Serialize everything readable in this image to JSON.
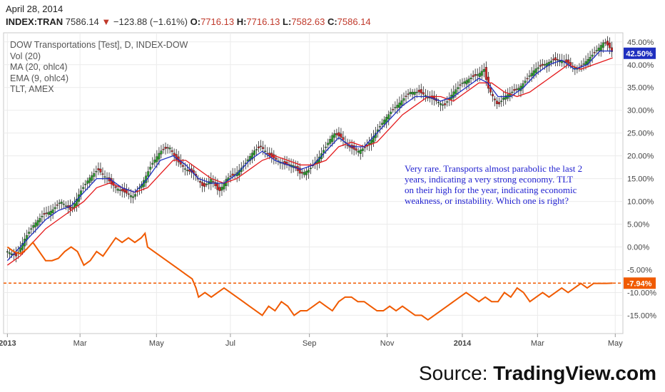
{
  "header": {
    "date": "April 28, 2014",
    "symbol": "INDEX:TRAN",
    "last": "7586.14",
    "change": "−123.88 (−1.61%)",
    "open_label": "O:",
    "open": "7716.13",
    "high_label": "H:",
    "high": "7716.13",
    "low_label": "L:",
    "low": "7582.63",
    "close_label": "C:",
    "close": "7586.14"
  },
  "legend": {
    "title": "DOW Transportations [Test], D, INDEX-DOW",
    "items": [
      "Vol (20)",
      "MA (20, ohlc4)",
      "EMA (9, ohlc4)",
      "TLT, AMEX"
    ]
  },
  "annotation": "Very rare. Transports almost parabolic the last 2 years, indicating a very strong economy. TLT on their high for the year, indicating economic weakness, or instability. Which one is right?",
  "source": {
    "prefix": "Source: ",
    "brand": "TradingView.com"
  },
  "colors": {
    "up": "#2ca02c",
    "down": "#d62728",
    "ma": "#e41a1c",
    "ema": "#1f2fbf",
    "tlt": "#f05a00",
    "price_tag": "#1f2fbf",
    "tlt_tag": "#f05a00"
  },
  "chart_data": {
    "type": "line",
    "title": "DOW Transportations [Test], D, INDEX-DOW",
    "y_unit": "%",
    "ylim": [
      -19,
      47
    ],
    "y_ticks": [
      "45.00%",
      "40.00%",
      "35.00%",
      "30.00%",
      "25.00%",
      "20.00%",
      "15.00%",
      "10.00%",
      "5.00%",
      "0.00%",
      "-5.00%",
      "-10.00%",
      "-15.00%"
    ],
    "y_tick_values": [
      45,
      40,
      35,
      30,
      25,
      20,
      15,
      10,
      5,
      0,
      -5,
      -10,
      -15
    ],
    "x_ticks": [
      "2013",
      "Mar",
      "May",
      "Jul",
      "Sep",
      "Nov",
      "2014",
      "Mar",
      "May"
    ],
    "x_tick_bold": [
      true,
      false,
      false,
      false,
      false,
      false,
      true,
      false,
      false
    ],
    "x_tick_pos": [
      0,
      57,
      117,
      175,
      237,
      298,
      357,
      416,
      477
    ],
    "x_range": [
      -3,
      483
    ],
    "price_label": "42.50%",
    "price_value": 42.5,
    "tlt_label": "-7.94%",
    "tlt_value": -7.94,
    "dow_transports_pct": [
      [
        0,
        -1
      ],
      [
        7,
        -2
      ],
      [
        14,
        2
      ],
      [
        21,
        5
      ],
      [
        28,
        7
      ],
      [
        35,
        8
      ],
      [
        42,
        10
      ],
      [
        50,
        8
      ],
      [
        57,
        12
      ],
      [
        64,
        15
      ],
      [
        71,
        17
      ],
      [
        78,
        15
      ],
      [
        85,
        13
      ],
      [
        92,
        12
      ],
      [
        99,
        11
      ],
      [
        106,
        14
      ],
      [
        113,
        18
      ],
      [
        120,
        21
      ],
      [
        127,
        22
      ],
      [
        133,
        19
      ],
      [
        140,
        17
      ],
      [
        147,
        16
      ],
      [
        154,
        13
      ],
      [
        160,
        15
      ],
      [
        166,
        12
      ],
      [
        172,
        15
      ],
      [
        179,
        16
      ],
      [
        186,
        18
      ],
      [
        193,
        21
      ],
      [
        199,
        22
      ],
      [
        206,
        20
      ],
      [
        212,
        19
      ],
      [
        218,
        18
      ],
      [
        224,
        18
      ],
      [
        230,
        16
      ],
      [
        237,
        17
      ],
      [
        243,
        19
      ],
      [
        250,
        22
      ],
      [
        256,
        25
      ],
      [
        262,
        24
      ],
      [
        268,
        22
      ],
      [
        275,
        21
      ],
      [
        282,
        22
      ],
      [
        289,
        25
      ],
      [
        296,
        28
      ],
      [
        302,
        30
      ],
      [
        309,
        32
      ],
      [
        316,
        34
      ],
      [
        323,
        34
      ],
      [
        330,
        33
      ],
      [
        337,
        32
      ],
      [
        343,
        31
      ],
      [
        350,
        34
      ],
      [
        357,
        36
      ],
      [
        363,
        37
      ],
      [
        370,
        38
      ],
      [
        374,
        39
      ],
      [
        377,
        35
      ],
      [
        381,
        33
      ],
      [
        385,
        31
      ],
      [
        390,
        33
      ],
      [
        396,
        34
      ],
      [
        402,
        35
      ],
      [
        408,
        37
      ],
      [
        414,
        39
      ],
      [
        421,
        40
      ],
      [
        428,
        41
      ],
      [
        435,
        41
      ],
      [
        442,
        40
      ],
      [
        448,
        39
      ],
      [
        455,
        41
      ],
      [
        462,
        43
      ],
      [
        468,
        45
      ],
      [
        472,
        44
      ],
      [
        475,
        42.5
      ]
    ],
    "ema_9": [
      [
        0,
        -3
      ],
      [
        10,
        0
      ],
      [
        20,
        3
      ],
      [
        30,
        6
      ],
      [
        40,
        8
      ],
      [
        50,
        9
      ],
      [
        60,
        12
      ],
      [
        70,
        15
      ],
      [
        80,
        15
      ],
      [
        90,
        13
      ],
      [
        100,
        12
      ],
      [
        110,
        15
      ],
      [
        120,
        19
      ],
      [
        130,
        20
      ],
      [
        140,
        18
      ],
      [
        150,
        15
      ],
      [
        160,
        14
      ],
      [
        170,
        14
      ],
      [
        180,
        16
      ],
      [
        190,
        19
      ],
      [
        200,
        21
      ],
      [
        210,
        19
      ],
      [
        220,
        18
      ],
      [
        230,
        17
      ],
      [
        240,
        18
      ],
      [
        250,
        21
      ],
      [
        260,
        24
      ],
      [
        270,
        22
      ],
      [
        280,
        22
      ],
      [
        290,
        25
      ],
      [
        300,
        28
      ],
      [
        310,
        31
      ],
      [
        320,
        33
      ],
      [
        330,
        33
      ],
      [
        340,
        32
      ],
      [
        350,
        33
      ],
      [
        360,
        35
      ],
      [
        370,
        37
      ],
      [
        377,
        36
      ],
      [
        385,
        33
      ],
      [
        395,
        33
      ],
      [
        405,
        35
      ],
      [
        415,
        38
      ],
      [
        425,
        40
      ],
      [
        435,
        41
      ],
      [
        445,
        39
      ],
      [
        455,
        40
      ],
      [
        465,
        43
      ],
      [
        475,
        43
      ]
    ],
    "ma_20": [
      [
        0,
        -4
      ],
      [
        10,
        -2
      ],
      [
        20,
        1
      ],
      [
        30,
        4
      ],
      [
        40,
        6
      ],
      [
        50,
        8
      ],
      [
        60,
        10
      ],
      [
        70,
        13
      ],
      [
        80,
        14
      ],
      [
        90,
        13
      ],
      [
        100,
        12
      ],
      [
        110,
        13
      ],
      [
        120,
        16
      ],
      [
        130,
        19
      ],
      [
        140,
        19
      ],
      [
        150,
        17
      ],
      [
        160,
        15
      ],
      [
        170,
        14
      ],
      [
        180,
        15
      ],
      [
        190,
        17
      ],
      [
        200,
        19
      ],
      [
        210,
        20
      ],
      [
        220,
        19
      ],
      [
        230,
        18
      ],
      [
        240,
        18
      ],
      [
        250,
        19
      ],
      [
        260,
        22
      ],
      [
        270,
        23
      ],
      [
        280,
        22
      ],
      [
        290,
        23
      ],
      [
        300,
        26
      ],
      [
        310,
        29
      ],
      [
        320,
        31
      ],
      [
        330,
        33
      ],
      [
        340,
        33
      ],
      [
        350,
        32
      ],
      [
        360,
        34
      ],
      [
        370,
        36
      ],
      [
        380,
        36
      ],
      [
        390,
        34
      ],
      [
        400,
        33
      ],
      [
        410,
        34
      ],
      [
        420,
        36
      ],
      [
        430,
        38
      ],
      [
        440,
        40
      ],
      [
        450,
        39
      ],
      [
        460,
        40
      ],
      [
        470,
        41
      ],
      [
        475,
        41.5
      ]
    ],
    "tlt_pct": [
      [
        0,
        0
      ],
      [
        5,
        -1
      ],
      [
        10,
        -1.5
      ],
      [
        15,
        -0.5
      ],
      [
        20,
        1
      ],
      [
        25,
        -1
      ],
      [
        30,
        -3
      ],
      [
        35,
        -3
      ],
      [
        40,
        -2.5
      ],
      [
        45,
        -1
      ],
      [
        50,
        0
      ],
      [
        55,
        -1
      ],
      [
        60,
        -4
      ],
      [
        65,
        -3
      ],
      [
        70,
        -1
      ],
      [
        75,
        -2
      ],
      [
        80,
        0
      ],
      [
        85,
        2
      ],
      [
        90,
        1
      ],
      [
        95,
        2
      ],
      [
        100,
        1
      ],
      [
        105,
        2
      ],
      [
        108,
        3
      ],
      [
        110,
        0
      ],
      [
        115,
        -1
      ],
      [
        120,
        -2
      ],
      [
        125,
        -3
      ],
      [
        130,
        -4
      ],
      [
        135,
        -5
      ],
      [
        140,
        -6
      ],
      [
        145,
        -7
      ],
      [
        148,
        -9
      ],
      [
        150,
        -11
      ],
      [
        155,
        -10
      ],
      [
        160,
        -11
      ],
      [
        165,
        -10
      ],
      [
        170,
        -9
      ],
      [
        175,
        -10
      ],
      [
        180,
        -11
      ],
      [
        185,
        -12
      ],
      [
        190,
        -13
      ],
      [
        195,
        -14
      ],
      [
        200,
        -15
      ],
      [
        205,
        -13
      ],
      [
        210,
        -14
      ],
      [
        215,
        -12
      ],
      [
        220,
        -13
      ],
      [
        225,
        -15
      ],
      [
        230,
        -14
      ],
      [
        235,
        -14
      ],
      [
        240,
        -13
      ],
      [
        245,
        -12
      ],
      [
        250,
        -13
      ],
      [
        255,
        -14
      ],
      [
        260,
        -12
      ],
      [
        265,
        -11
      ],
      [
        270,
        -11
      ],
      [
        275,
        -12
      ],
      [
        280,
        -12
      ],
      [
        285,
        -13
      ],
      [
        290,
        -14
      ],
      [
        295,
        -14
      ],
      [
        300,
        -13
      ],
      [
        305,
        -14
      ],
      [
        310,
        -13
      ],
      [
        315,
        -14
      ],
      [
        320,
        -15
      ],
      [
        325,
        -15
      ],
      [
        330,
        -16
      ],
      [
        335,
        -15
      ],
      [
        340,
        -14
      ],
      [
        345,
        -13
      ],
      [
        350,
        -12
      ],
      [
        355,
        -11
      ],
      [
        360,
        -10
      ],
      [
        365,
        -11
      ],
      [
        370,
        -12
      ],
      [
        375,
        -11
      ],
      [
        380,
        -12
      ],
      [
        385,
        -12
      ],
      [
        390,
        -10
      ],
      [
        395,
        -11
      ],
      [
        400,
        -9
      ],
      [
        405,
        -10
      ],
      [
        410,
        -12
      ],
      [
        415,
        -11
      ],
      [
        420,
        -10
      ],
      [
        425,
        -11
      ],
      [
        430,
        -10
      ],
      [
        435,
        -9
      ],
      [
        440,
        -10
      ],
      [
        445,
        -9
      ],
      [
        450,
        -8
      ],
      [
        455,
        -9
      ],
      [
        460,
        -8
      ],
      [
        465,
        -8
      ],
      [
        470,
        -8
      ],
      [
        475,
        -7.94
      ]
    ]
  }
}
